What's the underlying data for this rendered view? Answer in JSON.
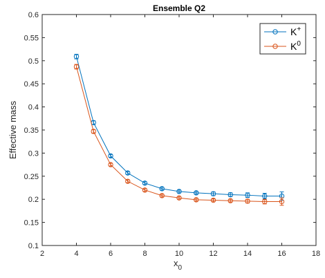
{
  "chart_data": {
    "type": "line",
    "title": "Ensemble Q2",
    "xlabel": "x",
    "xlabel_subscript": "0",
    "ylabel": "Effective mass",
    "xlim": [
      2,
      18
    ],
    "ylim": [
      0.1,
      0.6
    ],
    "xticks": [
      "2",
      "4",
      "6",
      "8",
      "10",
      "12",
      "14",
      "16",
      "18"
    ],
    "yticks": [
      "0.1",
      "0.15",
      "0.2",
      "0.25",
      "0.3",
      "0.35",
      "0.4",
      "0.45",
      "0.5",
      "0.55",
      "0.6"
    ],
    "grid": false,
    "legend_position": "top-right",
    "series": [
      {
        "name": "K",
        "superscript": "+",
        "color": "#0072bd",
        "marker": "circle",
        "x": [
          4,
          5,
          6,
          7,
          8,
          9,
          10,
          11,
          12,
          13,
          14,
          15,
          16
        ],
        "y": [
          0.509,
          0.366,
          0.294,
          0.257,
          0.235,
          0.223,
          0.217,
          0.214,
          0.212,
          0.21,
          0.209,
          0.207,
          0.207
        ],
        "err": [
          0.005,
          0.004,
          0.003,
          0.003,
          0.003,
          0.003,
          0.003,
          0.003,
          0.004,
          0.004,
          0.005,
          0.006,
          0.009
        ]
      },
      {
        "name": "K",
        "superscript": "0",
        "color": "#d95319",
        "marker": "circle",
        "x": [
          4,
          5,
          6,
          7,
          8,
          9,
          10,
          11,
          12,
          13,
          14,
          15,
          16
        ],
        "y": [
          0.487,
          0.347,
          0.275,
          0.239,
          0.22,
          0.208,
          0.203,
          0.199,
          0.198,
          0.197,
          0.196,
          0.195,
          0.195
        ],
        "err": [
          0.005,
          0.004,
          0.003,
          0.003,
          0.003,
          0.003,
          0.003,
          0.003,
          0.003,
          0.003,
          0.004,
          0.005,
          0.008
        ]
      }
    ]
  }
}
